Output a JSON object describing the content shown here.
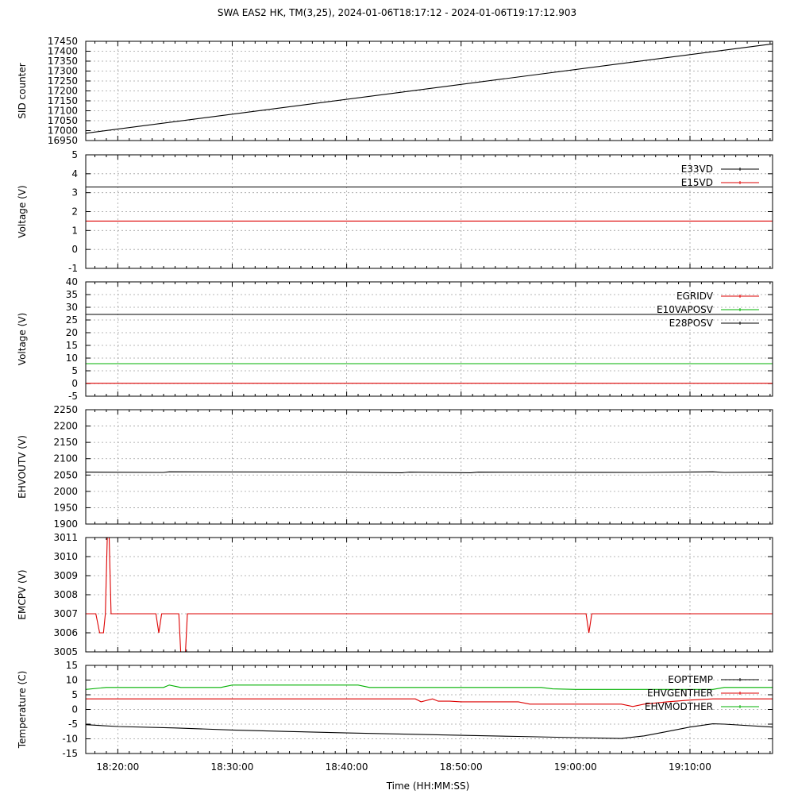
{
  "title": "SWA EAS2 HK, TM(3,25),  2024-01-06T18:17:12 - 2024-01-06T19:17:12.903",
  "xlabel": "Time (HH:MM:SS)",
  "x_tick_labels": [
    "18:20:00",
    "18:30:00",
    "18:40:00",
    "18:50:00",
    "19:00:00",
    "19:10:00"
  ],
  "colors": {
    "black": "#000000",
    "red": "#dd0000",
    "green": "#00b000",
    "grid": "#a0a0a0"
  },
  "chart_data": [
    {
      "type": "line",
      "ylabel": "SID counter",
      "xlim": [
        "18:17:12",
        "19:17:13"
      ],
      "ylim": [
        16950,
        17450
      ],
      "y_ticks": [
        16950,
        17000,
        17050,
        17100,
        17150,
        17200,
        17250,
        17300,
        17350,
        17400,
        17450
      ],
      "legend": "none",
      "grid": true,
      "series": [
        {
          "color": "#000000",
          "points": [
            [
              "18:17:12",
              16987
            ],
            [
              "19:17:12",
              17437
            ]
          ]
        }
      ]
    },
    {
      "type": "line",
      "ylabel": "Voltage (V)",
      "xlim": [
        "18:17:12",
        "19:17:13"
      ],
      "ylim": [
        -1,
        5
      ],
      "y_ticks": [
        -1,
        0,
        1,
        2,
        3,
        4,
        5
      ],
      "legend": "top-right",
      "grid": true,
      "series": [
        {
          "name": "E33VD",
          "color": "#000000",
          "points": [
            [
              "18:17:12",
              3.3
            ],
            [
              "19:17:12",
              3.3
            ]
          ]
        },
        {
          "name": "E15VD",
          "color": "#dd0000",
          "points": [
            [
              "18:17:12",
              1.5
            ],
            [
              "19:17:12",
              1.5
            ]
          ]
        }
      ]
    },
    {
      "type": "line",
      "ylabel": "Voltage (V)",
      "xlim": [
        "18:17:12",
        "19:17:13"
      ],
      "ylim": [
        -5,
        40
      ],
      "y_ticks": [
        -5,
        0,
        5,
        10,
        15,
        20,
        25,
        30,
        35,
        40
      ],
      "legend": "top-right",
      "grid": true,
      "series": [
        {
          "name": "EGRIDV",
          "color": "#dd0000",
          "points": [
            [
              "18:17:12",
              0.1
            ],
            [
              "19:17:12",
              0.1
            ]
          ]
        },
        {
          "name": "E10VAPOSV",
          "color": "#00b000",
          "points": [
            [
              "18:17:12",
              7.8
            ],
            [
              "19:17:12",
              7.8
            ]
          ]
        },
        {
          "name": "E28POSV",
          "color": "#000000",
          "points": [
            [
              "18:17:12",
              27.2
            ],
            [
              "19:17:12",
              27.2
            ]
          ]
        }
      ]
    },
    {
      "type": "line",
      "ylabel": "EHVOUTV (V)",
      "xlim": [
        "18:17:12",
        "19:17:13"
      ],
      "ylim": [
        1900,
        2250
      ],
      "y_ticks": [
        1900,
        1950,
        2000,
        2050,
        2100,
        2150,
        2200,
        2250
      ],
      "legend": "none",
      "grid": true,
      "series": [
        {
          "color": "#000000",
          "points": [
            [
              "18:17:12",
              2059
            ],
            [
              "18:24:00",
              2058
            ],
            [
              "18:24:30",
              2060
            ],
            [
              "18:40:00",
              2059
            ],
            [
              "18:44:50",
              2057
            ],
            [
              "18:45:30",
              2059
            ],
            [
              "18:50:50",
              2057
            ],
            [
              "18:51:30",
              2059
            ],
            [
              "19:06:00",
              2058
            ],
            [
              "19:12:00",
              2060
            ],
            [
              "19:13:00",
              2058
            ],
            [
              "19:17:12",
              2059
            ]
          ]
        }
      ]
    },
    {
      "type": "line",
      "ylabel": "EMCPV (V)",
      "xlim": [
        "18:17:12",
        "19:17:13"
      ],
      "ylim": [
        3005,
        3011
      ],
      "y_ticks": [
        3005,
        3006,
        3007,
        3008,
        3009,
        3010,
        3011
      ],
      "legend": "none",
      "grid": true,
      "series": [
        {
          "color": "#dd0000",
          "points": [
            [
              "18:17:12",
              3007
            ],
            [
              "18:18:05",
              3007
            ],
            [
              "18:18:25",
              3006
            ],
            [
              "18:18:45",
              3006
            ],
            [
              "18:18:55",
              3007
            ],
            [
              "18:19:05",
              3011
            ],
            [
              "18:19:15",
              3011
            ],
            [
              "18:19:25",
              3007
            ],
            [
              "18:23:20",
              3007
            ],
            [
              "18:23:35",
              3006
            ],
            [
              "18:23:50",
              3007
            ],
            [
              "18:25:20",
              3007
            ],
            [
              "18:25:30",
              3005
            ],
            [
              "18:25:55",
              3005
            ],
            [
              "18:26:05",
              3007
            ],
            [
              "19:00:55",
              3007
            ],
            [
              "19:01:10",
              3006
            ],
            [
              "19:01:25",
              3007
            ],
            [
              "19:17:12",
              3007
            ]
          ]
        }
      ]
    },
    {
      "type": "line",
      "ylabel": "Temperature (C)",
      "xlim": [
        "18:17:12",
        "19:17:13"
      ],
      "ylim": [
        -15,
        15
      ],
      "y_ticks": [
        -15,
        -10,
        -5,
        0,
        5,
        10,
        15
      ],
      "legend": "top-right",
      "grid": true,
      "series": [
        {
          "name": "EOPTEMP",
          "color": "#000000",
          "points": [
            [
              "18:17:12",
              -5.2
            ],
            [
              "18:20:00",
              -5.8
            ],
            [
              "18:25:00",
              -6.3
            ],
            [
              "18:30:00",
              -7.0
            ],
            [
              "18:35:00",
              -7.5
            ],
            [
              "18:40:00",
              -8.0
            ],
            [
              "18:45:00",
              -8.4
            ],
            [
              "18:50:00",
              -8.8
            ],
            [
              "18:55:00",
              -9.2
            ],
            [
              "19:00:00",
              -9.6
            ],
            [
              "19:04:00",
              -9.9
            ],
            [
              "19:06:00",
              -9.0
            ],
            [
              "19:08:00",
              -7.5
            ],
            [
              "19:10:00",
              -6.0
            ],
            [
              "19:12:00",
              -4.9
            ],
            [
              "19:13:00",
              -5.0
            ],
            [
              "19:17:12",
              -6.0
            ]
          ]
        },
        {
          "name": "EHVGENTHER",
          "color": "#dd0000",
          "points": [
            [
              "18:17:12",
              3.6
            ],
            [
              "18:46:00",
              3.6
            ],
            [
              "18:46:30",
              2.6
            ],
            [
              "18:47:30",
              3.6
            ],
            [
              "18:48:00",
              2.8
            ],
            [
              "18:49:00",
              2.8
            ],
            [
              "18:50:00",
              2.6
            ],
            [
              "18:51:00",
              2.6
            ],
            [
              "18:55:00",
              2.6
            ],
            [
              "18:56:00",
              1.8
            ],
            [
              "19:04:00",
              1.8
            ],
            [
              "19:05:00",
              1.0
            ],
            [
              "19:06:00",
              1.8
            ],
            [
              "19:08:00",
              2.6
            ],
            [
              "19:10:00",
              3.2
            ],
            [
              "19:12:00",
              3.6
            ],
            [
              "19:17:12",
              3.6
            ]
          ]
        },
        {
          "name": "EHVMODTHER",
          "color": "#00b000",
          "points": [
            [
              "18:17:12",
              6.8
            ],
            [
              "18:19:00",
              7.5
            ],
            [
              "18:24:00",
              7.5
            ],
            [
              "18:24:30",
              8.3
            ],
            [
              "18:25:30",
              7.5
            ],
            [
              "18:29:00",
              7.5
            ],
            [
              "18:30:00",
              8.3
            ],
            [
              "18:41:00",
              8.3
            ],
            [
              "18:42:00",
              7.5
            ],
            [
              "18:57:00",
              7.5
            ],
            [
              "18:58:00",
              7.0
            ],
            [
              "19:00:00",
              6.8
            ],
            [
              "19:08:00",
              6.8
            ],
            [
              "19:09:00",
              6.8
            ],
            [
              "19:12:00",
              6.8
            ],
            [
              "19:13:00",
              7.5
            ],
            [
              "19:17:12",
              7.5
            ]
          ]
        }
      ]
    }
  ]
}
